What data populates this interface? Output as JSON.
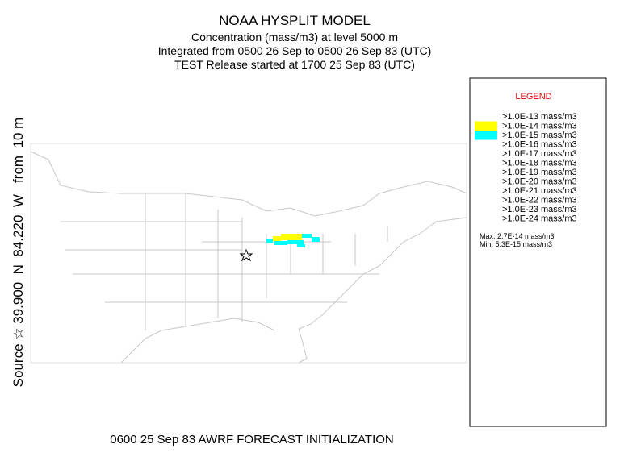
{
  "title": "NOAA HYSPLIT MODEL",
  "subtitle_lines": [
    "Concentration  (mass/m3) at level  5000 m",
    "Integrated from 0500 26 Sep to 0500 26 Sep 83 (UTC)",
    "TEST Release started at 1700 25 Sep 83 (UTC)"
  ],
  "source_label": "Source ☆ 39.900  N  84.220  W   from  10 m",
  "footer": "0600 25 Sep 83 AWRF FORECAST INITIALIZATION",
  "legend": {
    "title": "LEGEND",
    "entries": [
      {
        "label": ">1.0E-13 mass/m3"
      },
      {
        "label": ">1.0E-14 mass/m3",
        "color": "#ffff00"
      },
      {
        "label": ">1.0E-15 mass/m3",
        "color": "#00ffff"
      },
      {
        "label": ">1.0E-16 mass/m3"
      },
      {
        "label": ">1.0E-17 mass/m3"
      },
      {
        "label": ">1.0E-18 mass/m3"
      },
      {
        "label": ">1.0E-19 mass/m3"
      },
      {
        "label": ">1.0E-20 mass/m3"
      },
      {
        "label": ">1.0E-21 mass/m3"
      },
      {
        "label": ">1.0E-22 mass/m3"
      },
      {
        "label": ">1.0E-23 mass/m3"
      },
      {
        "label": ">1.0E-24 mass/m3"
      }
    ],
    "max": "Max: 2.7E-14 mass/m3",
    "min": "Min: 5.3E-15 mass/m3"
  }
}
